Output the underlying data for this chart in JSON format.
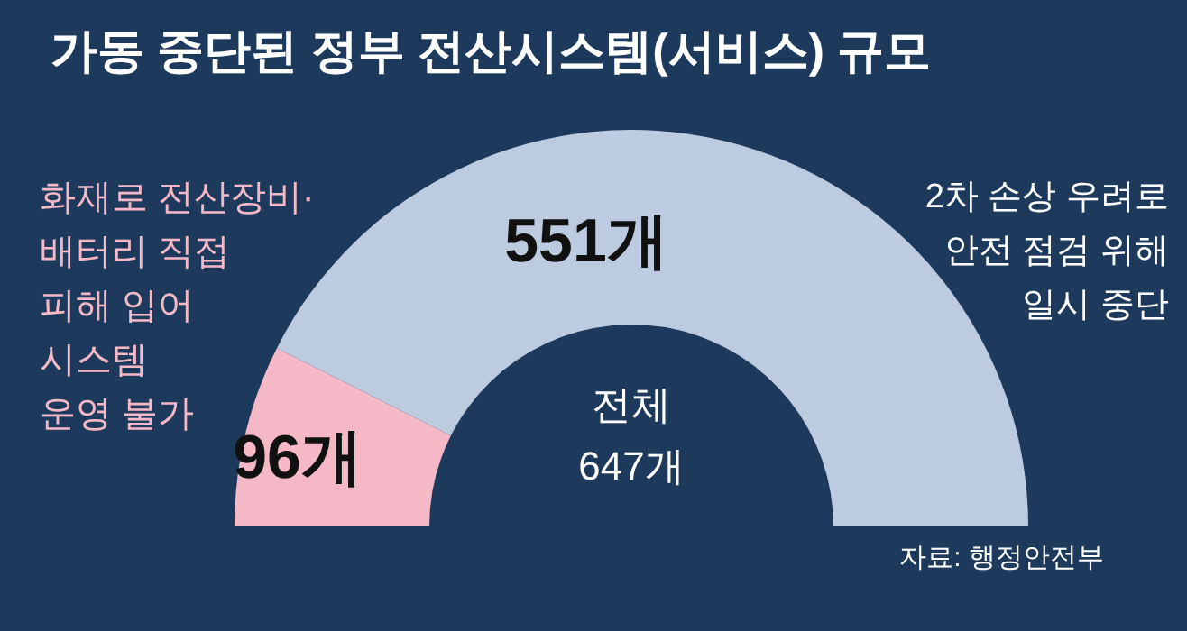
{
  "chart_data": {
    "type": "donut",
    "title": "가동 중단된 정부 전산시스템(서비스) 규모",
    "categories": [
      "화재로 전산장비·\n배터리 직접\n피해 입어\n시스템\n운영 불가",
      "2차 손상 우려로\n안전 점검 위해\n일시 중단"
    ],
    "values": [
      96,
      551
    ],
    "colors": [
      "#f4b8c6",
      "#bccbe0"
    ],
    "value_labels": [
      "96개",
      "551개"
    ],
    "annotations": [
      "전체\n647개",
      "자료: 행정안전부"
    ]
  }
}
